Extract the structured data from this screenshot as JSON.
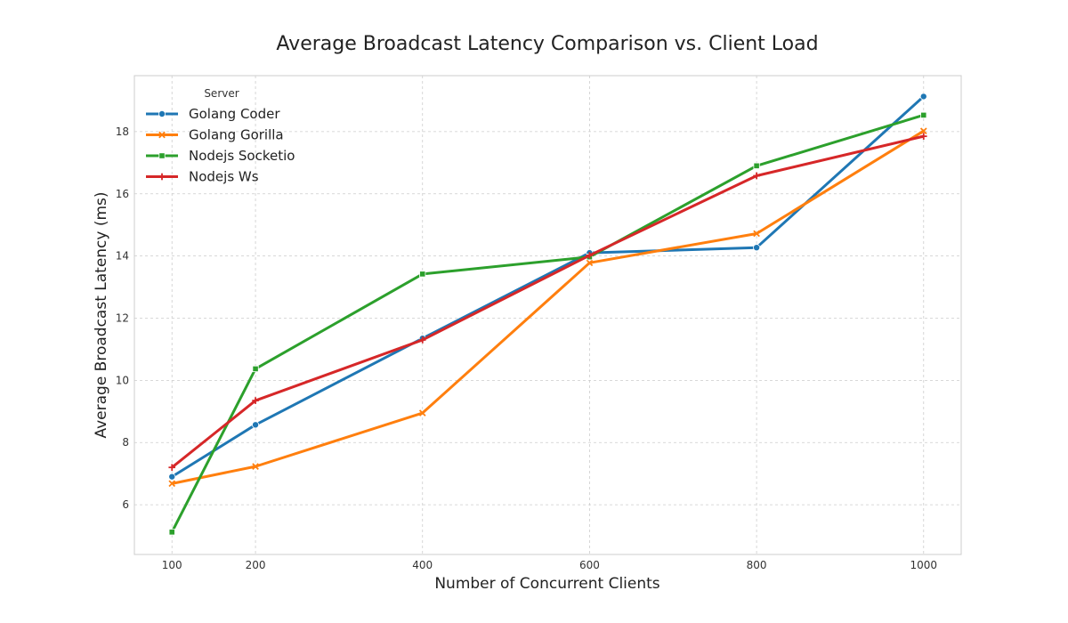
{
  "chart_data": {
    "type": "line",
    "title": "Average Broadcast Latency Comparison vs. Client Load",
    "xlabel": "Number of Concurrent Clients",
    "ylabel": "Average Broadcast Latency (ms)",
    "x": [
      100,
      200,
      400,
      600,
      800,
      1000
    ],
    "xticks": [
      "100",
      "200",
      "400",
      "600",
      "800",
      "1000"
    ],
    "xlim": [
      55,
      1045
    ],
    "yticks": [
      "6",
      "8",
      "10",
      "12",
      "14",
      "16",
      "18"
    ],
    "ylim": [
      4.4,
      19.8
    ],
    "grid": true,
    "legend": {
      "title": "Server",
      "position": "top-left"
    },
    "series": [
      {
        "name": "Golang Coder",
        "color": "#1f77b4",
        "marker": "circle",
        "values": [
          6.9,
          8.57,
          11.35,
          14.1,
          14.27,
          19.13
        ]
      },
      {
        "name": "Golang Gorilla",
        "color": "#ff7f0e",
        "marker": "x",
        "values": [
          6.68,
          7.23,
          8.95,
          13.78,
          14.72,
          18.02
        ]
      },
      {
        "name": "Nodejs Socketio",
        "color": "#2ca02c",
        "marker": "square",
        "values": [
          5.12,
          10.37,
          13.42,
          13.97,
          16.9,
          18.53
        ]
      },
      {
        "name": "Nodejs Ws",
        "color": "#d62728",
        "marker": "plus",
        "values": [
          7.2,
          9.35,
          11.3,
          14.02,
          16.58,
          17.85
        ]
      }
    ]
  }
}
